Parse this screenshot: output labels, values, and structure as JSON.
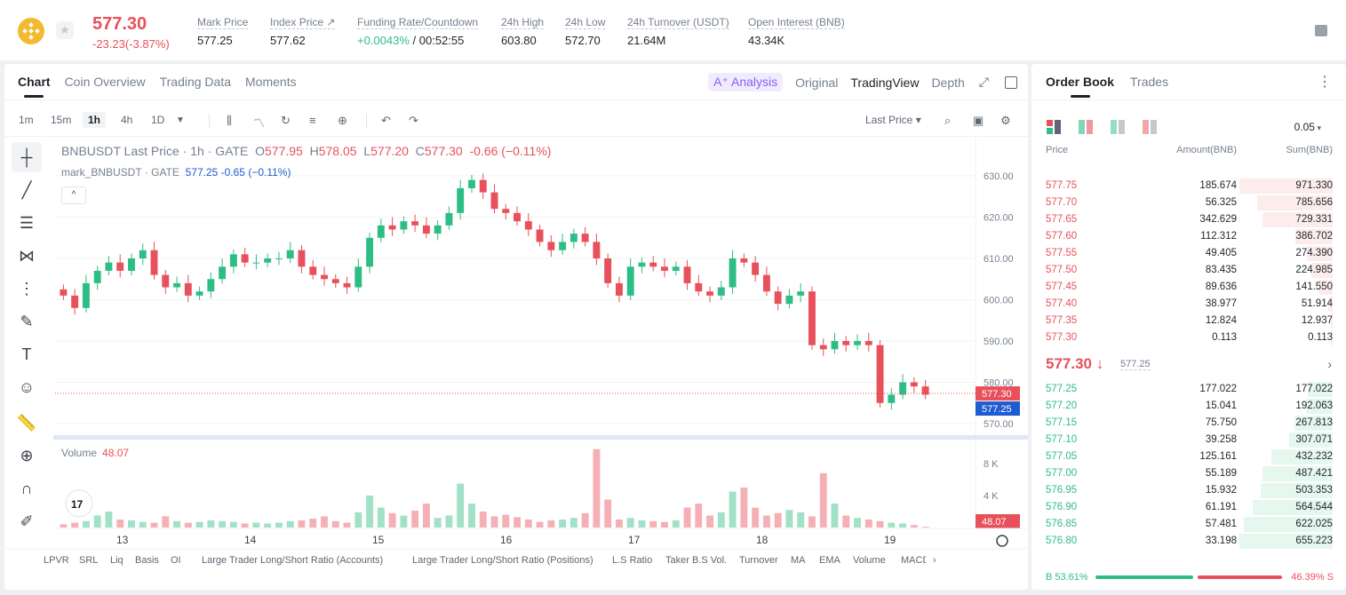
{
  "ticker": {
    "last_price": "577.30",
    "change": "-23.23(-3.87%)",
    "stats": [
      {
        "label": "Mark Price",
        "value": "577.25"
      },
      {
        "label": "Index Price ↗",
        "value": "577.62"
      },
      {
        "label": "Funding Rate/Countdown",
        "value_green": "+0.0043%",
        "value": " / 00:52:55"
      },
      {
        "label": "24h High",
        "value": "603.80"
      },
      {
        "label": "24h Low",
        "value": "572.70"
      },
      {
        "label": "24h Turnover (USDT)",
        "value": "21.64M"
      },
      {
        "label": "Open Interest (BNB)",
        "value": "43.34K"
      }
    ]
  },
  "chart_tabs": [
    "Chart",
    "Coin Overview",
    "Trading Data",
    "Moments"
  ],
  "view_tabs": {
    "ai": "A⁺ Analysis",
    "original": "Original",
    "tradingview": "TradingView",
    "depth": "Depth"
  },
  "intervals": [
    "1m",
    "15m",
    "1h",
    "4h",
    "1D"
  ],
  "active_interval": "1h",
  "price_type": "Last Price ▾",
  "legend": {
    "title": "BNBUSDT Last Price · 1h · GATE",
    "o_label": "O",
    "o": "577.95",
    "h_label": "H",
    "h": "578.05",
    "l_label": "L",
    "l": "577.20",
    "c_label": "C",
    "c": "577.30",
    "chg": "-0.66 (−0.11%)",
    "mark_title": "mark_BNBUSDT · GATE",
    "mark_val": "577.25 -0.65 (−0.11%)"
  },
  "volume": {
    "label": "Volume",
    "value": "48.07"
  },
  "indicators": [
    "LPVR",
    "SRL",
    "Liq",
    "Basis",
    "OI",
    "Large Trader Long/Short Ratio (Accounts)",
    "Large Trader Long/Short Ratio (Positions)",
    "L.S Ratio",
    "Taker B.S Vol.",
    "Turnover",
    "MA",
    "EMA",
    "Volume",
    "MACD"
  ],
  "colors": {
    "up": "#2ebd85",
    "down": "#e8505b",
    "mark": "#1f5bd1"
  },
  "chart_data": {
    "type": "candlestick",
    "title": "BNBUSDT Last Price · 1h · GATE",
    "price_axis_ticks": [
      "630.00",
      "620.00",
      "610.00",
      "600.00",
      "590.00",
      "580.00",
      "570.00"
    ],
    "volume_axis_ticks": [
      "8 K",
      "4 K"
    ],
    "x_ticks": [
      "13",
      "14",
      "15",
      "16",
      "17",
      "18",
      "19"
    ],
    "ylim": [
      570,
      630
    ],
    "last_price_label": "577.30",
    "mark_price_label": "577.25",
    "volume_last_label": "48.07",
    "close_series": [
      601,
      598,
      604,
      607,
      609,
      607,
      610,
      612,
      606,
      603,
      604,
      601,
      602,
      605,
      608,
      611,
      609,
      609,
      610,
      610,
      612,
      608,
      606,
      605,
      604,
      603,
      608,
      615,
      618,
      617,
      619,
      618,
      616,
      618,
      621,
      627,
      629,
      626,
      622,
      621,
      619,
      617,
      614,
      612,
      614,
      616,
      614,
      610,
      604,
      601,
      608,
      609,
      608,
      607,
      608,
      604,
      602,
      601,
      603,
      610,
      609,
      606,
      602,
      599,
      601,
      602,
      589,
      588,
      590,
      589,
      590,
      589,
      575,
      577,
      580,
      579,
      577
    ],
    "volume_series": [
      0.4,
      0.6,
      0.8,
      1.5,
      2.0,
      1.0,
      0.9,
      0.7,
      0.6,
      1.4,
      0.8,
      0.6,
      0.7,
      0.9,
      0.8,
      0.7,
      0.5,
      0.6,
      0.5,
      0.6,
      0.8,
      0.9,
      1.1,
      1.4,
      0.8,
      0.6,
      1.9,
      4.0,
      2.5,
      1.8,
      1.5,
      2.1,
      3.0,
      1.2,
      1.5,
      5.5,
      3.0,
      2.0,
      1.4,
      1.6,
      1.3,
      1.0,
      0.7,
      0.9,
      1.0,
      1.2,
      1.8,
      9.8,
      3.5,
      1.0,
      1.2,
      0.9,
      0.8,
      0.7,
      0.9,
      2.5,
      3.0,
      1.5,
      1.9,
      4.5,
      5.0,
      2.5,
      1.5,
      1.8,
      2.2,
      1.9,
      1.4,
      6.8,
      3.0,
      1.5,
      1.2,
      1.0,
      0.8,
      0.6,
      0.5,
      0.3,
      0.1
    ]
  },
  "order_book": {
    "tabs": [
      "Order Book",
      "Trades"
    ],
    "precision": "0.05",
    "headers": {
      "price": "Price",
      "amount": "Amount(BNB)",
      "sum": "Sum(BNB)"
    },
    "asks": [
      {
        "price": "577.75",
        "amount": "185.674",
        "sum": "971.330",
        "depth": 1.0
      },
      {
        "price": "577.70",
        "amount": "56.325",
        "sum": "785.656",
        "depth": 0.81
      },
      {
        "price": "577.65",
        "amount": "342.629",
        "sum": "729.331",
        "depth": 0.75
      },
      {
        "price": "577.60",
        "amount": "112.312",
        "sum": "386.702",
        "depth": 0.4
      },
      {
        "price": "577.55",
        "amount": "49.405",
        "sum": "274.390",
        "depth": 0.28
      },
      {
        "price": "577.50",
        "amount": "83.435",
        "sum": "224.985",
        "depth": 0.23
      },
      {
        "price": "577.45",
        "amount": "89.636",
        "sum": "141.550",
        "depth": 0.15
      },
      {
        "price": "577.40",
        "amount": "38.977",
        "sum": "51.914",
        "depth": 0.05
      },
      {
        "price": "577.35",
        "amount": "12.824",
        "sum": "12.937",
        "depth": 0.013
      },
      {
        "price": "577.30",
        "amount": "0.113",
        "sum": "0.113",
        "depth": 0.002
      }
    ],
    "mid_price": "577.30 ↓",
    "mid_mark": "577.25",
    "bids": [
      {
        "price": "577.25",
        "amount": "177.022",
        "sum": "177.022",
        "depth": 0.27
      },
      {
        "price": "577.20",
        "amount": "15.041",
        "sum": "192.063",
        "depth": 0.29
      },
      {
        "price": "577.15",
        "amount": "75.750",
        "sum": "267.813",
        "depth": 0.41
      },
      {
        "price": "577.10",
        "amount": "39.258",
        "sum": "307.071",
        "depth": 0.47
      },
      {
        "price": "577.05",
        "amount": "125.161",
        "sum": "432.232",
        "depth": 0.66
      },
      {
        "price": "577.00",
        "amount": "55.189",
        "sum": "487.421",
        "depth": 0.75
      },
      {
        "price": "576.95",
        "amount": "15.932",
        "sum": "503.353",
        "depth": 0.77
      },
      {
        "price": "576.90",
        "amount": "61.191",
        "sum": "564.544",
        "depth": 0.86
      },
      {
        "price": "576.85",
        "amount": "57.481",
        "sum": "622.025",
        "depth": 0.95
      },
      {
        "price": "576.80",
        "amount": "33.198",
        "sum": "655.223",
        "depth": 1.0
      }
    ],
    "ratio": {
      "buy": "B 53.61%",
      "sell": "46.39% S",
      "buy_frac": 0.5361
    }
  }
}
